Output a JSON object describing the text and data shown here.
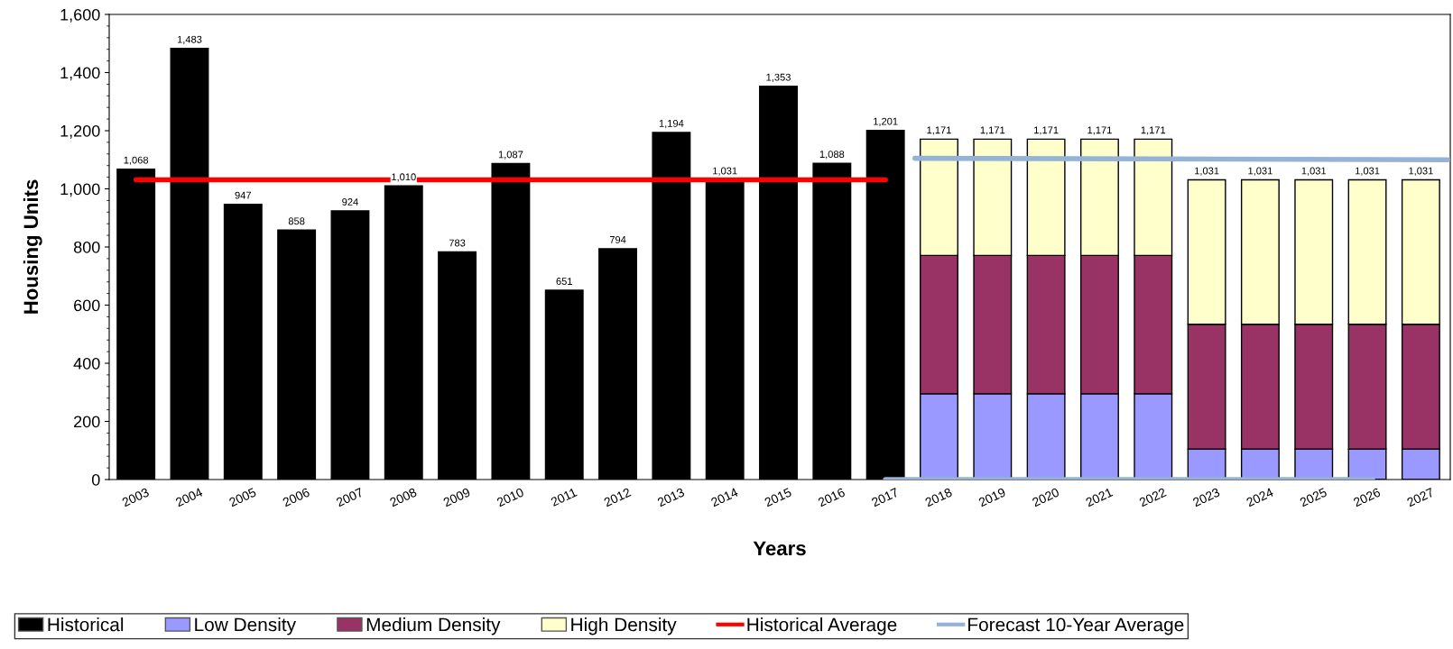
{
  "chart_data": {
    "type": "bar",
    "stacked": true,
    "xlabel": "Years",
    "ylabel": "Housing Units",
    "x": [
      2003,
      2004,
      2005,
      2006,
      2007,
      2008,
      2009,
      2010,
      2011,
      2012,
      2013,
      2014,
      2015,
      2016,
      2017,
      2018,
      2019,
      2020,
      2021,
      2022,
      2023,
      2024,
      2025,
      2026,
      2027
    ],
    "xlim": [
      2002.5,
      2027.55
    ],
    "xticks": [
      2003,
      2004,
      2005,
      2006,
      2007,
      2008,
      2009,
      2010,
      2011,
      2012,
      2013,
      2014,
      2015,
      2016,
      2017,
      2018,
      2019,
      2020,
      2021,
      2022,
      2023,
      2024,
      2025,
      2026,
      2027
    ],
    "ylim": [
      0,
      1600
    ],
    "yticks": [
      {
        "value": 0,
        "label": "0"
      },
      {
        "value": 200,
        "label": "200"
      },
      {
        "value": 400,
        "label": "400"
      },
      {
        "value": 600,
        "label": "600"
      },
      {
        "value": 800,
        "label": "800"
      },
      {
        "value": 1000,
        "label": "1,000"
      },
      {
        "value": 1200,
        "label": "1,200"
      },
      {
        "value": 1400,
        "label": "1,400"
      },
      {
        "value": 1600,
        "label": "1,600"
      }
    ],
    "series": [
      {
        "name": "Historical",
        "color": "#000000",
        "values": [
          1068,
          1483,
          947,
          858,
          924,
          1010,
          783,
          1087,
          651,
          794,
          1194,
          1031,
          1353,
          1088,
          1201,
          null,
          null,
          null,
          null,
          null,
          null,
          null,
          null,
          null,
          null
        ]
      },
      {
        "name": "Low Density",
        "color": "#9999ff",
        "values": [
          null,
          null,
          null,
          null,
          null,
          null,
          null,
          null,
          null,
          null,
          null,
          null,
          null,
          null,
          null,
          295,
          295,
          295,
          295,
          295,
          105,
          105,
          105,
          105,
          105
        ]
      },
      {
        "name": "Medium Density",
        "color": "#993366",
        "values": [
          null,
          null,
          null,
          null,
          null,
          null,
          null,
          null,
          null,
          null,
          null,
          null,
          null,
          null,
          null,
          476,
          476,
          476,
          476,
          476,
          429,
          429,
          429,
          429,
          429
        ]
      },
      {
        "name": "High Density",
        "color": "#ffffcc",
        "values": [
          null,
          null,
          null,
          null,
          null,
          null,
          null,
          null,
          null,
          null,
          null,
          null,
          null,
          null,
          null,
          400,
          400,
          400,
          400,
          400,
          497,
          497,
          497,
          497,
          497
        ]
      },
      {
        "name": "Historical Average",
        "type": "line",
        "color": "#ff0000",
        "x": [
          2003,
          2017
        ],
        "values": [
          1031,
          1031
        ]
      },
      {
        "name": "Forecast 10-Year Average",
        "type": "line",
        "color": "#95b3d7",
        "x": [
          2017.55,
          2027.5
        ],
        "values": [
          1105,
          1100
        ]
      },
      {
        "type": "line",
        "color": "#95b3d7",
        "x": [
          2017,
          2026.1
        ],
        "values": [
          0,
          0
        ]
      }
    ],
    "totals": [
      "1,068",
      "1,483",
      "947",
      "858",
      "924",
      "1,010",
      "783",
      "1,087",
      "651",
      "794",
      "1,194",
      "1,031",
      "1,353",
      "1,088",
      "1,201",
      "1,171",
      "1,171",
      "1,171",
      "1,171",
      "1,171",
      "1,031",
      "1,031",
      "1,031",
      "1,031",
      "1,031"
    ],
    "legend": "bottom",
    "grid": false
  }
}
